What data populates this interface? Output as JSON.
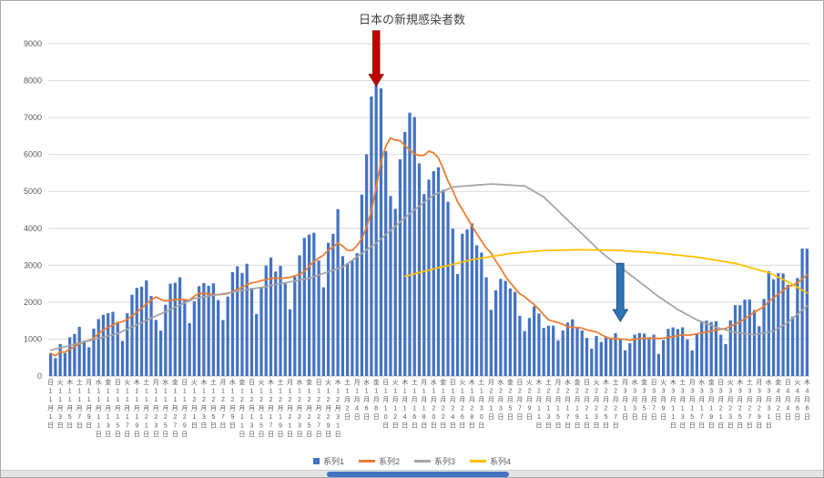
{
  "chart_data": {
    "type": "combo",
    "title": "日本の新規感染者数",
    "ylim": [
      0,
      9000
    ],
    "yticks": [
      0,
      1000,
      2000,
      3000,
      4000,
      5000,
      6000,
      7000,
      8000,
      9000
    ],
    "grid": "horizontal",
    "legend_position": "bottom",
    "label_step": 2,
    "x_labels": [
      "日11月1日",
      "火11月3日",
      "木11月5日",
      "土11月7日",
      "月11月9日",
      "水11月11日",
      "金11月13日",
      "日11月15日",
      "火11月17日",
      "木11月19日",
      "土11月21日",
      "月11月23日",
      "水11月25日",
      "金11月27日",
      "日11月29日",
      "火12月1日",
      "木12月3日",
      "土12月5日",
      "月12月7日",
      "水12月9日",
      "金12月11日",
      "日12月13日",
      "火12月15日",
      "木12月17日",
      "土12月19日",
      "月12月21日",
      "水12月23日",
      "金12月25日",
      "日12月27日",
      "火12月29日",
      "木12月31日",
      "土1月2日",
      "月1月4日",
      "水1月6日",
      "金1月8日",
      "日1月10日",
      "火1月12日",
      "木1月14日",
      "土1月16日",
      "月1月18日",
      "水1月20日",
      "金1月22日",
      "日1月24日",
      "火1月26日",
      "木1月28日",
      "土1月30日",
      "月2月1日",
      "水2月3日",
      "金2月5日",
      "日2月7日",
      "火2月9日",
      "木2月11日",
      "土2月13日",
      "月2月15日",
      "水2月17日",
      "金2月19日",
      "日2月21日",
      "火2月23日",
      "木2月25日",
      "土2月27日",
      "月3月1日",
      "水3月3日",
      "金3月5日",
      "日3月7日",
      "火3月9日",
      "木3月11日",
      "土3月13日",
      "月3月15日",
      "水3月17日",
      "金3月19日",
      "日3月21日",
      "火3月23日",
      "木3月25日",
      "土3月27日",
      "月3月29日",
      "水3月31日",
      "金4月2日",
      "日4月4日",
      "火4月6日",
      "木4月8日"
    ],
    "series": [
      {
        "name": "系列1",
        "type": "bar",
        "color": "#4472c4",
        "values": [
          614,
          484,
          867,
          620,
          1049,
          1141,
          1331,
          957,
          780,
          1284,
          1543,
          1660,
          1704,
          1738,
          1440,
          950,
          1699,
          2201,
          2386,
          2418,
          2592,
          2168,
          1520,
          1229,
          1930,
          2503,
          2527,
          2674,
          2058,
          1435,
          2027,
          2432,
          2518,
          2442,
          2508,
          2058,
          1516,
          2152,
          2811,
          2972,
          2790,
          3041,
          2388,
          1680,
          2410,
          2994,
          3211,
          2829,
          2982,
          2501,
          1806,
          2688,
          3271,
          3742,
          3832,
          3881,
          3127,
          2403,
          3608,
          3852,
          4520,
          3246,
          3059,
          3127,
          3325,
          4915,
          6004,
          7570,
          7882,
          7790,
          6093,
          4876,
          4527,
          5870,
          6610,
          7133,
          7014,
          5759,
          4925,
          5320,
          5549,
          5653,
          5045,
          4717,
          3990,
          2764,
          3853,
          3971,
          4133,
          3539,
          3344,
          2673,
          1792,
          2324,
          2631,
          2576,
          2372,
          2277,
          1631,
          1216,
          1570,
          1887,
          1693,
          1304,
          1362,
          1364,
          965,
          1234,
          1448,
          1536,
          1301,
          1234,
          1032,
          740,
          1083,
          922,
          1076,
          1035,
          1159,
          999,
          697,
          888,
          1121,
          1165,
          1148,
          1051,
          1121,
          599,
          972,
          1277,
          1316,
          1271,
          1319,
          989,
          695,
          1133,
          1449,
          1500,
          1463,
          1485,
          1121,
          867,
          1504,
          1917,
          1918,
          2068,
          2072,
          1785,
          1348,
          2087,
          2843,
          2621,
          2785,
          2779,
          2472,
          1612,
          2654,
          3451,
          3450
        ]
      },
      {
        "name": "系列2",
        "type": "line",
        "color": "#ed7d31",
        "values": [
          614,
          549,
          655,
          646,
          727,
          796,
          872,
          921,
          964,
          1023,
          1155,
          1242,
          1323,
          1381,
          1450,
          1474,
          1533,
          1627,
          1731,
          1833,
          1955,
          2059,
          2141,
          2073,
          2035,
          2051,
          2067,
          2079,
          2063,
          2051,
          2165,
          2237,
          2239,
          2227,
          2203,
          2203,
          2214,
          2232,
          2286,
          2351,
          2401,
          2477,
          2524,
          2548,
          2585,
          2611,
          2645,
          2650,
          2642,
          2658,
          2676,
          2716,
          2755,
          2831,
          2975,
          3103,
          3192,
          3278,
          3409,
          3492,
          3603,
          3520,
          3402,
          3402,
          3534,
          3721,
          4028,
          4464,
          5126,
          5802,
          6226,
          6447,
          6392,
          6373,
          6235,
          6128,
          6018,
          5970,
          5977,
          6090,
          6044,
          5908,
          5609,
          5281,
          5028,
          4720,
          4510,
          4285,
          4068,
          3852,
          3656,
          3468,
          3329,
          3111,
          2919,
          2697,
          2530,
          2378,
          2229,
          2147,
          2039,
          1933,
          1807,
          1654,
          1523,
          1485,
          1449,
          1401,
          1339,
          1316,
          1316,
          1297,
          1250,
          1218,
          1196,
          1121,
          1055,
          1017,
          1007,
          1002,
          996,
          968,
          996,
          1009,
          1025,
          1010,
          1027,
          1013,
          1025,
          1048,
          1069,
          1087,
          1125,
          1106,
          1120,
          1143,
          1167,
          1194,
          1221,
          1245,
          1264,
          1288,
          1341,
          1408,
          1468,
          1554,
          1638,
          1733,
          1802,
          1885,
          2017,
          2118,
          2220,
          2321,
          2419,
          2457,
          2538,
          2625,
          2743
        ]
      },
      {
        "name": "系列3",
        "type": "line",
        "color": "#a5a5a5",
        "values": [
          700,
          732,
          764,
          796,
          829,
          861,
          893,
          925,
          957,
          989,
          1021,
          1054,
          1086,
          1118,
          1150,
          1209,
          1269,
          1328,
          1388,
          1447,
          1506,
          1566,
          1625,
          1684,
          1744,
          1803,
          1863,
          1922,
          1981,
          2041,
          2100,
          2121,
          2143,
          2164,
          2186,
          2207,
          2229,
          2250,
          2271,
          2293,
          2314,
          2336,
          2357,
          2379,
          2400,
          2425,
          2450,
          2475,
          2500,
          2525,
          2550,
          2575,
          2600,
          2625,
          2650,
          2693,
          2736,
          2779,
          2821,
          2864,
          2907,
          2950,
          3043,
          3136,
          3229,
          3321,
          3414,
          3507,
          3600,
          3714,
          3829,
          3943,
          4057,
          4171,
          4286,
          4400,
          4500,
          4600,
          4700,
          4800,
          4900,
          4955,
          5010,
          5065,
          5120,
          5130,
          5140,
          5150,
          5160,
          5170,
          5180,
          5190,
          5200,
          5193,
          5186,
          5179,
          5171,
          5164,
          5157,
          5150,
          5075,
          5000,
          4925,
          4850,
          4725,
          4600,
          4475,
          4350,
          4225,
          4100,
          3975,
          3850,
          3725,
          3600,
          3475,
          3350,
          3250,
          3150,
          3050,
          2950,
          2850,
          2750,
          2650,
          2550,
          2450,
          2350,
          2250,
          2150,
          2063,
          1975,
          1888,
          1800,
          1730,
          1660,
          1590,
          1520,
          1470,
          1420,
          1370,
          1320,
          1285,
          1250,
          1215,
          1180,
          1165,
          1150,
          1135,
          1120,
          1145,
          1170,
          1195,
          1220,
          1297,
          1373,
          1450,
          1563,
          1675,
          1788,
          1900
        ]
      },
      {
        "name": "系列4",
        "type": "line",
        "color": "#ffc000",
        "start_index": 74,
        "values": [
          2700,
          2733,
          2767,
          2800,
          2833,
          2867,
          2900,
          2931,
          2963,
          2994,
          3025,
          3056,
          3088,
          3119,
          3150,
          3171,
          3193,
          3214,
          3235,
          3256,
          3278,
          3299,
          3320,
          3331,
          3343,
          3354,
          3366,
          3377,
          3389,
          3400,
          3403,
          3405,
          3408,
          3410,
          3413,
          3415,
          3418,
          3420,
          3418,
          3415,
          3413,
          3410,
          3408,
          3405,
          3403,
          3400,
          3391,
          3383,
          3374,
          3365,
          3356,
          3348,
          3339,
          3330,
          3316,
          3303,
          3289,
          3275,
          3261,
          3248,
          3234,
          3220,
          3199,
          3178,
          3156,
          3135,
          3114,
          3093,
          3071,
          3050,
          3014,
          2979,
          2943,
          2907,
          2871,
          2836,
          2800,
          2738,
          2675,
          2613,
          2550,
          2475,
          2400,
          2325,
          2250
        ]
      }
    ],
    "annotations": [
      {
        "name": "red-down-arrow",
        "shape": "down-arrow",
        "fill": "#c00000",
        "stroke": "#8f1d1d",
        "x_index": 68,
        "value_from": 9350,
        "value_to": 7850
      },
      {
        "name": "blue-down-arrow",
        "shape": "down-arrow",
        "fill": "#2e75b6",
        "stroke": "#1f4e79",
        "x_index": 119,
        "value_from": 3050,
        "value_to": 1480
      }
    ]
  }
}
